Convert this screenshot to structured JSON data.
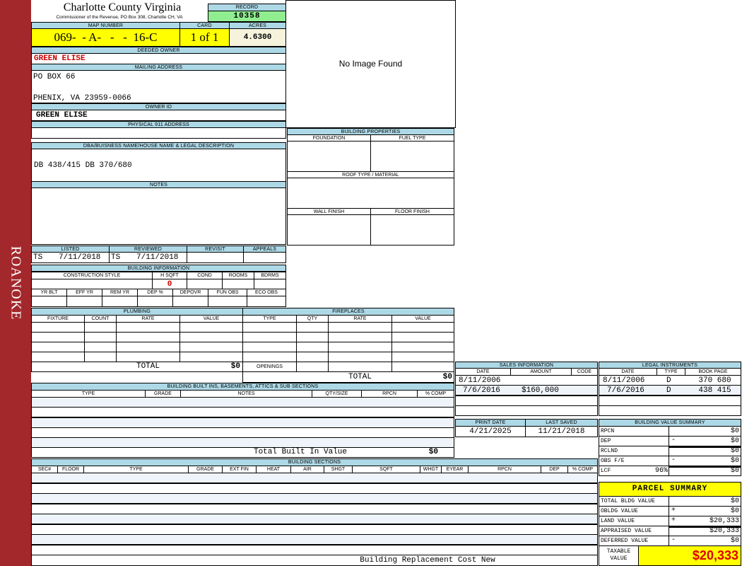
{
  "header": {
    "county": "Charlotte County Virginia",
    "subtitle": "Commissioner of the Revenue, PO Box 308, Charlotte CH, VA",
    "side_label": "ROANOKE"
  },
  "record": {
    "label": "RECORD",
    "value": "10358"
  },
  "map": {
    "label": "MAP NUMBER",
    "value": "069-  - A-   -   -  16-C"
  },
  "card": {
    "label": "CARD",
    "value": "1 of 1"
  },
  "acres": {
    "label": "ACRES",
    "value": "4.6300"
  },
  "owner": {
    "label": "DEEDED OWNER",
    "value": "GREEN ELISE"
  },
  "mailing": {
    "label": "MAILING ADDRESS",
    "line1": "PO BOX 66",
    "line2": "PHENIX, VA 23959-0066"
  },
  "owner_id": {
    "label": "OWNER ID",
    "value": "GREEN ELISE"
  },
  "physical": {
    "label": "PHYSICAL 911 ADDRESS",
    "value": ""
  },
  "legal": {
    "label": "DBA/BUISNESS NAME/HOUSE NAME & LEGAL DESCRIPTION",
    "value": "DB 438/415 DB 370/680"
  },
  "notes": {
    "label": "NOTES"
  },
  "image": {
    "text": "No Image Found"
  },
  "building_properties": {
    "label": "BUILDING PROPERTIES",
    "foundation": "FOUNDATION",
    "fuel": "FUEL TYPE",
    "roof": "ROOF TYPE / MATERIAL",
    "wall": "WALL FINISH",
    "floor": "FLOOR FINISH"
  },
  "review": {
    "listed_label": "LISTED",
    "listed_by": "TS",
    "listed_date": "7/11/2018",
    "reviewed_label": "REVIEWED",
    "reviewed_by": "TS",
    "reviewed_date": "7/11/2018",
    "revisit_label": "REVISIT",
    "appeals_label": "APPEALS"
  },
  "building_info": {
    "label": "BUILDING INFORMATION",
    "construction_style": "CONSTRUCTION STYLE",
    "hsqft": "H SQFT",
    "hsqft_value": "0",
    "cond": "COND",
    "rooms": "ROOMS",
    "bdrms": "BDRMS",
    "yr_blt": "YR BLT",
    "eff_yr": "EFF YR",
    "rem_yr": "REM YR",
    "dep_pct": "DEP %",
    "depovr": "DEPOVR",
    "fun_obs": "FUN OBS",
    "eco_obs": "ECO OBS"
  },
  "plumbing": {
    "label": "PLUMBING",
    "columns": [
      "FIXTURE",
      "COUNT",
      "RATE",
      "VALUE"
    ],
    "total_label": "TOTAL",
    "total": "$0"
  },
  "fireplaces": {
    "label": "FIREPLACES",
    "columns": [
      "TYPE",
      "QTY",
      "RATE",
      "VALUE"
    ],
    "openings_label": "OPENINGS",
    "total_label": "TOTAL",
    "total": "$0"
  },
  "built_ins": {
    "label": "BUILDING BUILT INS, BASEMENTS, ATTICS & SUB SECTIONS",
    "columns": [
      "TYPE",
      "GRADE",
      "NOTES",
      "QTY/SIZE",
      "RPCN",
      "% COMP"
    ],
    "total_label": "Total Built In Value",
    "total": "$0"
  },
  "sections": {
    "label": "BUILDING SECTIONS",
    "columns": [
      "SEC#",
      "FLOOR",
      "TYPE",
      "GRADE",
      "EXT FIN",
      "HEAT",
      "AIR",
      "SHGT",
      "SQFT",
      "WHGT",
      "EYEAR",
      "RPCN",
      "DEP",
      "% COMP"
    ],
    "footer": "Building Replacement Cost New"
  },
  "sales": {
    "label": "SALES INFORMATION",
    "columns": [
      "DATE",
      "AMOUNT",
      "CODE"
    ],
    "rows": [
      {
        "date": "8/11/2006",
        "amount": "",
        "code": ""
      },
      {
        "date": "7/6/2016",
        "amount": "$160,000",
        "code": ""
      }
    ]
  },
  "instruments": {
    "label": "LEGAL INSTRUMENTS",
    "columns": [
      "DATE",
      "TYPE",
      "BOOK PAGE"
    ],
    "rows": [
      {
        "date": "8/11/2006",
        "type": "D",
        "bookpage": "370 680"
      },
      {
        "date": "7/6/2016",
        "type": "D",
        "bookpage": "438 415"
      }
    ]
  },
  "dates": {
    "print_label": "PRINT DATE",
    "print_date": "4/21/2025",
    "saved_label": "LAST SAVED",
    "saved_date": "11/21/2018"
  },
  "value_summary": {
    "label": "BUILDING VALUE SUMMARY",
    "rows": [
      {
        "label": "RPCN",
        "extra": "",
        "sign": "",
        "value": "$0"
      },
      {
        "label": "DEP",
        "extra": "",
        "sign": "-",
        "value": "$0"
      },
      {
        "label": "RCLND",
        "extra": "",
        "sign": "",
        "value": "$0"
      },
      {
        "label": "OBS F/E",
        "extra": "",
        "sign": "-",
        "value": "$0"
      },
      {
        "label": "LCF",
        "extra": "96%",
        "sign": "",
        "value": "$0"
      }
    ]
  },
  "parcel": {
    "label": "PARCEL SUMMARY",
    "rows": [
      {
        "label": "TOTAL BLDG VALUE",
        "sign": "",
        "value": "$0"
      },
      {
        "label": "OBLDG VALUE",
        "sign": "+",
        "value": "$0"
      },
      {
        "label": "LAND VALUE",
        "sign": "+",
        "value": "$20,333"
      },
      {
        "label": "APPRAISED VALUE",
        "sign": "",
        "value": "$20,333"
      },
      {
        "label": "DEFERRED VALUE",
        "sign": "-",
        "value": "$0"
      }
    ],
    "taxable_label": "TAXABLE VALUE",
    "taxable_value": "$20,333"
  },
  "colors": {
    "sidebar": "#a3282b",
    "header": "#add8e6",
    "highlight": "#ffff00",
    "record": "#90ee90",
    "owner_text": "#cc0000"
  }
}
